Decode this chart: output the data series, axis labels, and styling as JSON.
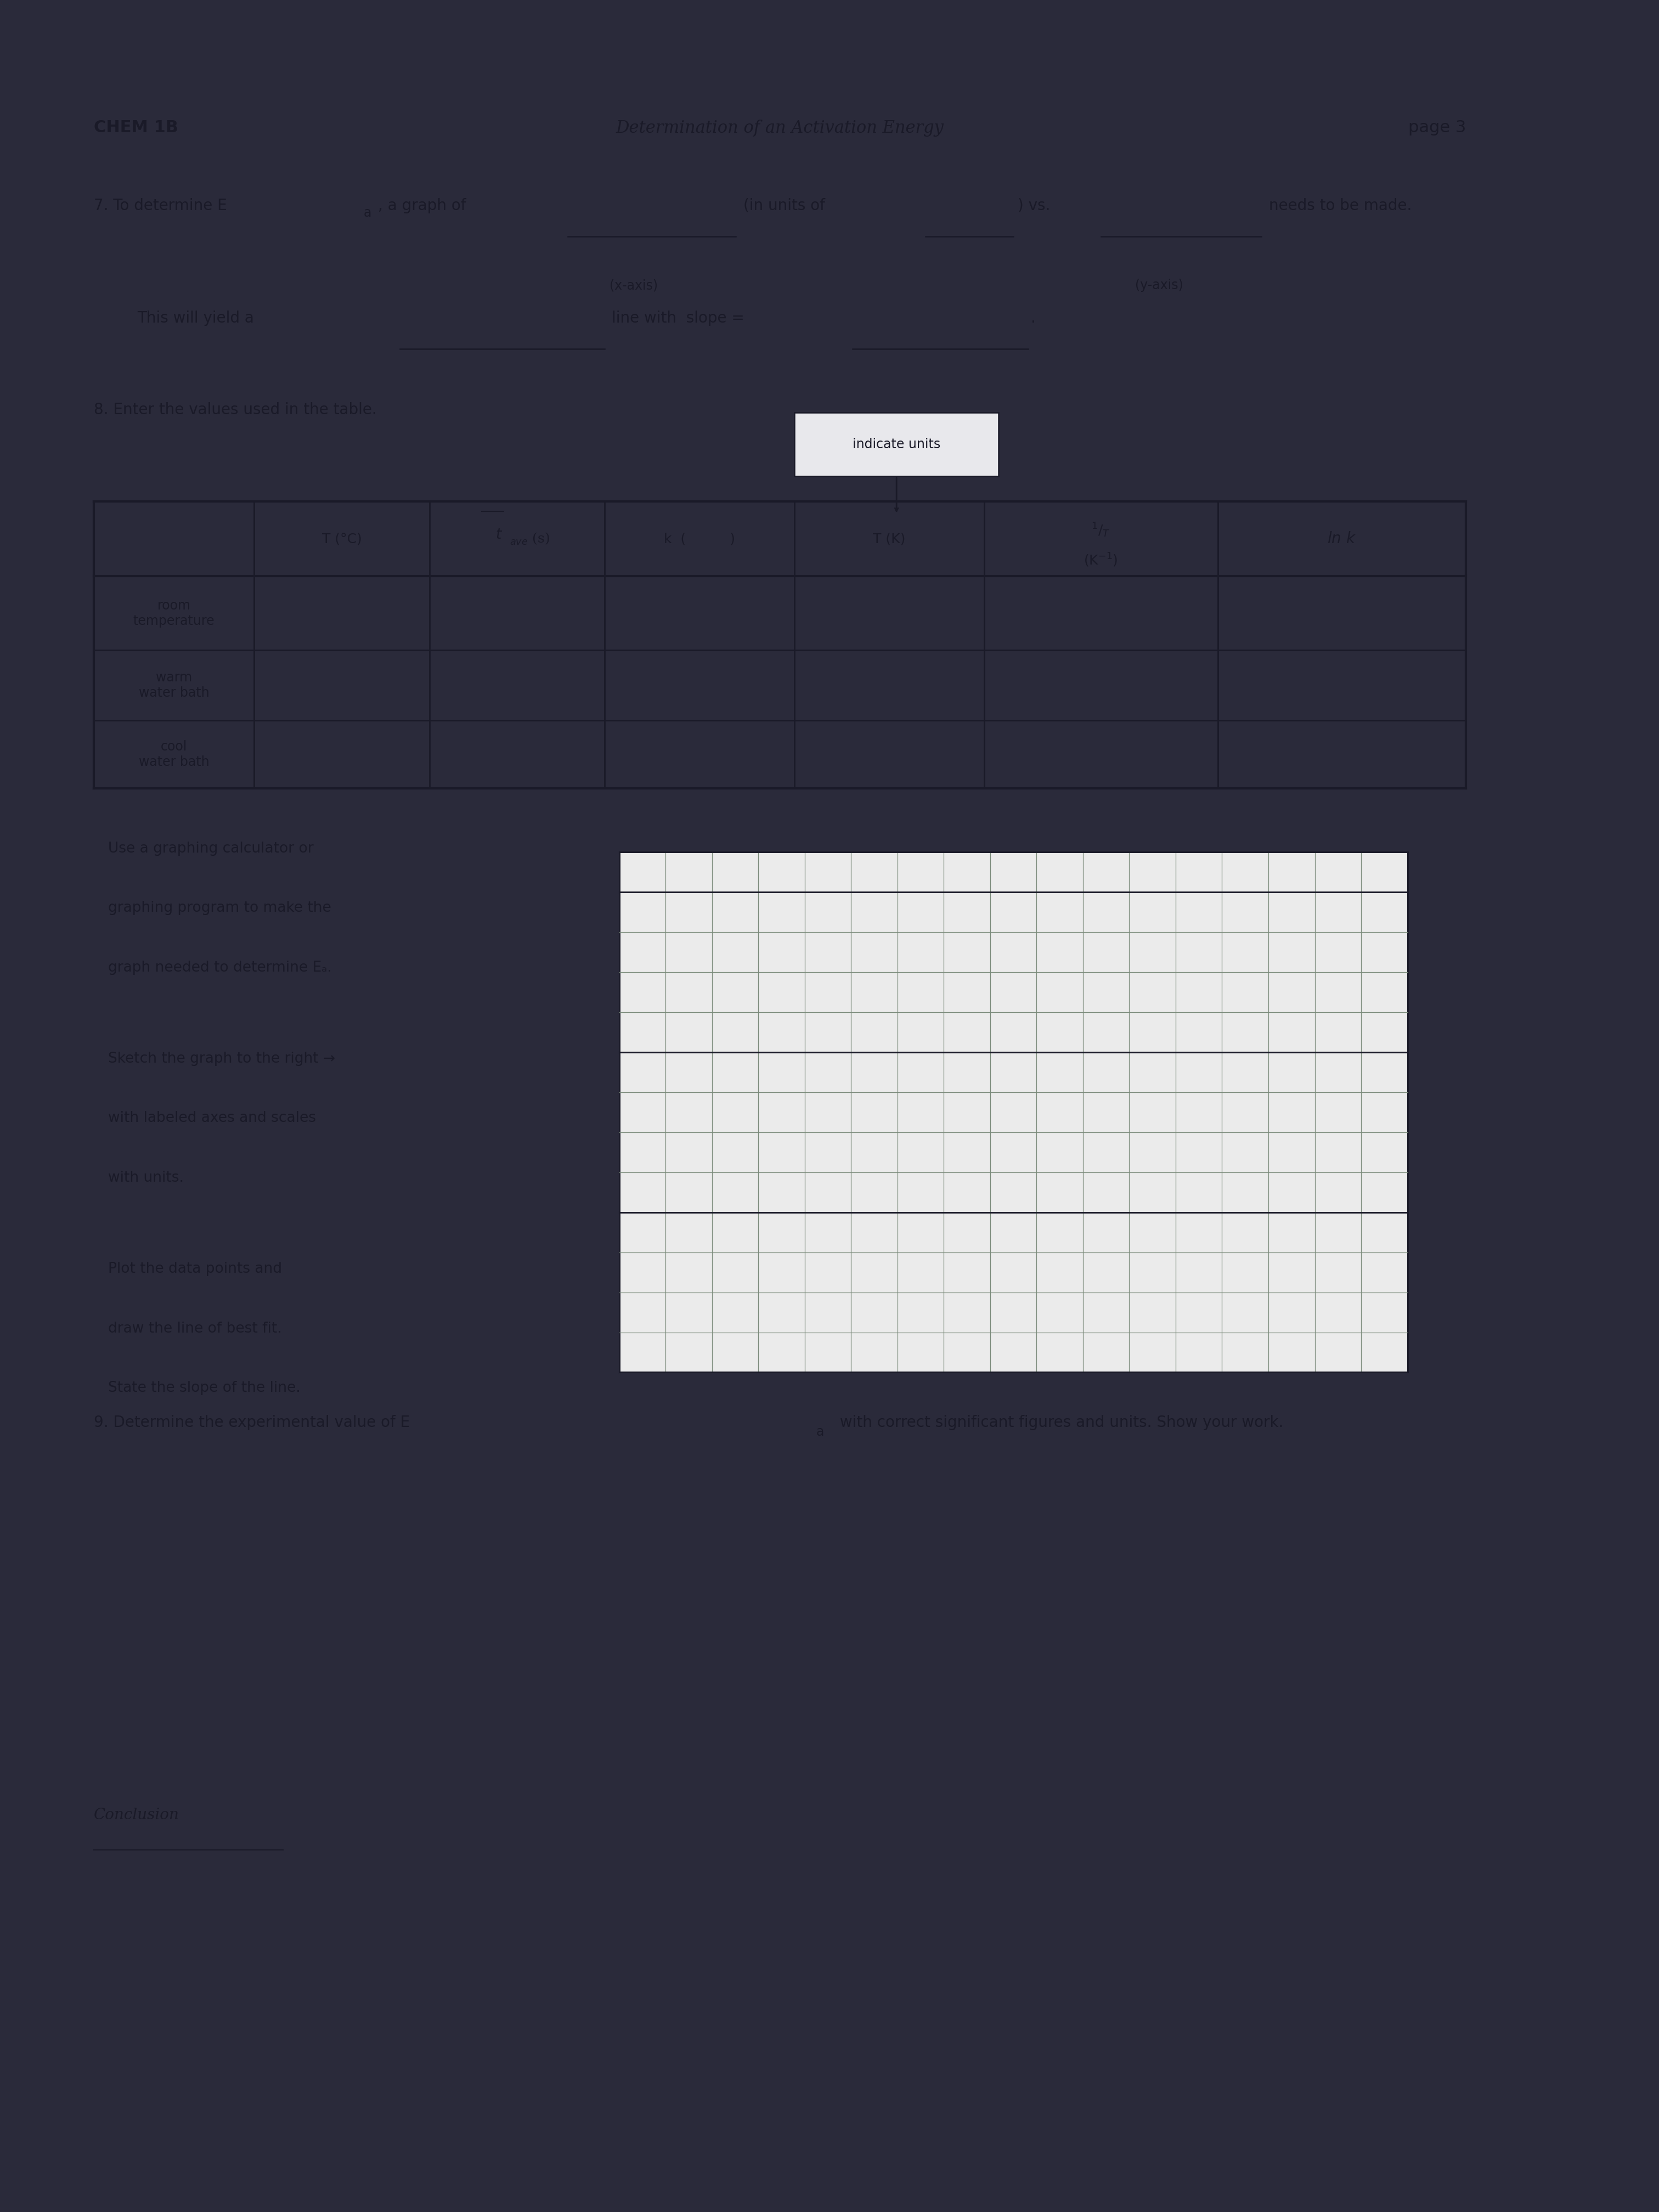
{
  "outer_bg": "#2a2a3a",
  "paper_bg": "#e8e8ec",
  "paper_bg2": "#d8d8de",
  "text_color": "#1a1a28",
  "line_color": "#1a1a28",
  "table_line_color": "#1a1a28",
  "grid_line_color": "#7a8a7a",
  "grid_bg": "#e0e0e0",
  "header_left": "CHEM 1B",
  "header_center": "Determination of an Activation Energy",
  "header_right": "page 3",
  "indicate_units": "indicate units",
  "table_col_headers": [
    "T (°C)",
    "tave (s)",
    "k (      )",
    "T (K)",
    "1/T (K⁻¹)",
    "ln k"
  ],
  "table_row_labels": [
    "room\ntemperature",
    "warm\nwater bath",
    "cool\nwater bath"
  ],
  "graph_instr1": [
    "Use a graphing calculator or",
    "graphing program to make the",
    "graph needed to determine Eₐ."
  ],
  "graph_instr2": [
    "Sketch the graph to the right →",
    "with labeled axes and scales",
    "with units."
  ],
  "graph_instr3": [
    "Plot the data points and",
    "draw the line of best fit.",
    "State the slope of the line."
  ],
  "grid_rows": 13,
  "grid_cols": 17,
  "font_size_header": 22,
  "font_size_body": 20,
  "font_size_small": 17,
  "font_size_table": 18
}
